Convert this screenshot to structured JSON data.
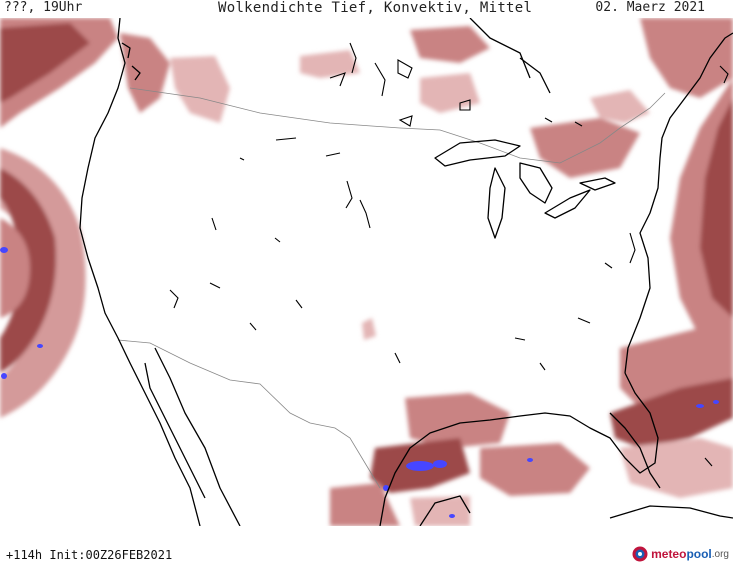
{
  "header": {
    "left": "???, 19Uhr",
    "center": "Wolkendichte  Tief, Konvektiv, Mittel",
    "right": "02. Maerz 2021"
  },
  "footer": {
    "run_info": "+114h Init:00Z26FEB2021",
    "logo": {
      "part1": "meteo",
      "part2": "pool",
      "part3": ".org"
    }
  },
  "colors": {
    "cloud_light": "#e3b5b5",
    "cloud_mid": "#c98383",
    "cloud_dark": "#9c4949",
    "convective": "#4646ff",
    "coast": "#000000",
    "border": "#888888",
    "logo_red": "#c0143c",
    "logo_blue": "#1a5fb4"
  }
}
